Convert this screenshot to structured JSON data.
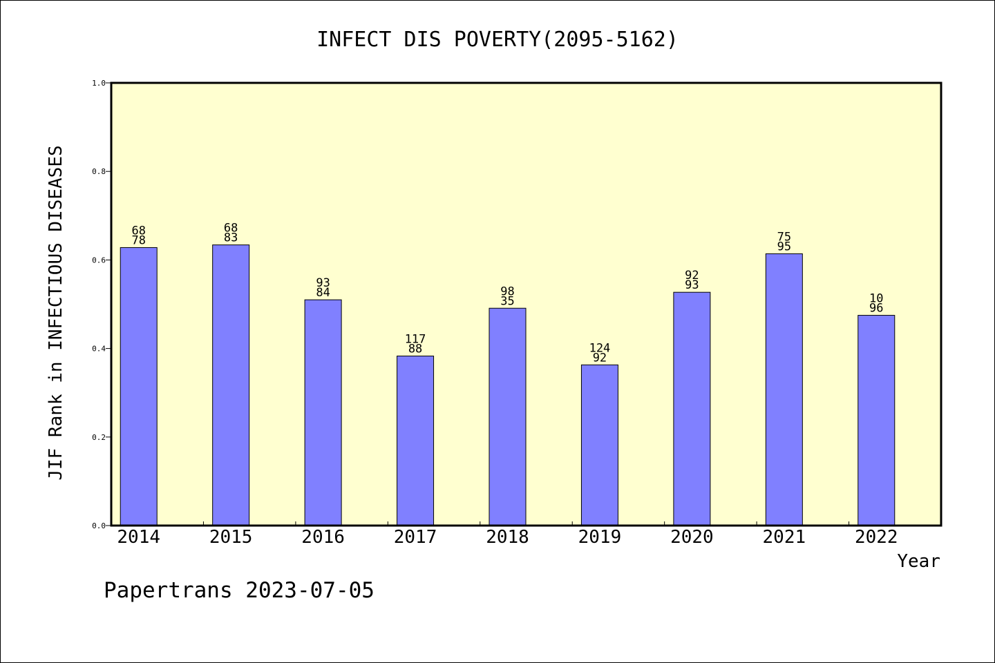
{
  "chart_data": {
    "type": "bar",
    "title": "INFECT DIS POVERTY(2095-5162)",
    "xlabel": "Year",
    "ylabel": "JIF Rank in INFECTIOUS DISEASES",
    "ylim": [
      0,
      1.0
    ],
    "yticks": [
      "0.0",
      "0.2",
      "0.4",
      "0.6",
      "0.8",
      "1.0"
    ],
    "categories": [
      "2014",
      "2015",
      "2016",
      "2017",
      "2018",
      "2019",
      "2020",
      "2021",
      "2022"
    ],
    "values": [
      0.628,
      0.634,
      0.51,
      0.383,
      0.491,
      0.363,
      0.527,
      0.614,
      0.475
    ],
    "labels_top": [
      "68",
      "68",
      "93",
      "117",
      "98",
      "124",
      "92",
      "75",
      "10"
    ],
    "labels_bottom": [
      "78",
      "83",
      "84",
      "88",
      "35",
      "92",
      "93",
      "95",
      "96"
    ],
    "grid": false,
    "colors": {
      "bar": "#8080ff",
      "plot_bg": "#ffffd0",
      "bar_edge": "#000000"
    }
  },
  "footer": {
    "text": "Papertrans 2023-07-05"
  }
}
